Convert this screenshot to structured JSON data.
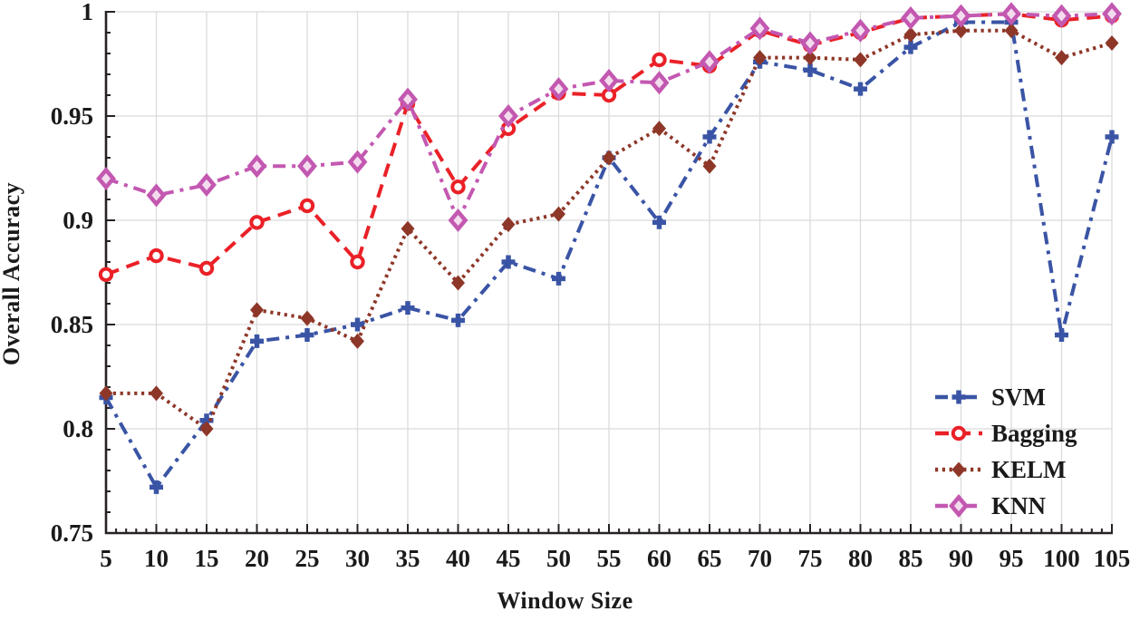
{
  "chart_data": {
    "type": "line",
    "title": "",
    "xlabel": "Window Size",
    "ylabel": "Overall Accuracy",
    "xlim": [
      5,
      105
    ],
    "ylim": [
      0.75,
      1.0
    ],
    "grid": true,
    "legend_position": "lower right",
    "xticks": [
      5,
      10,
      15,
      20,
      25,
      30,
      35,
      40,
      45,
      50,
      55,
      60,
      65,
      70,
      75,
      80,
      85,
      90,
      95,
      100,
      105
    ],
    "xtick_labels": [
      "5",
      "10",
      "15",
      "20",
      "25",
      "30",
      "35",
      "40",
      "45",
      "50",
      "55",
      "60",
      "65",
      "70",
      "75",
      "80",
      "85",
      "90",
      "95",
      "100",
      "105"
    ],
    "yticks": [
      0.75,
      0.8,
      0.85,
      0.9,
      0.95,
      1
    ],
    "ytick_labels": [
      "0.75",
      "0.8",
      "0.85",
      "0.9",
      "0.95",
      "1"
    ],
    "x_minor_step": 1,
    "y_minor_step": 0.01,
    "x": [
      5,
      10,
      15,
      20,
      25,
      30,
      35,
      40,
      45,
      50,
      55,
      60,
      65,
      70,
      75,
      80,
      85,
      90,
      95,
      100,
      105
    ],
    "series": [
      {
        "name": "SVM",
        "color": "#3A54A5",
        "line_style": "dash-dot",
        "marker": "plus",
        "values": [
          0.815,
          0.772,
          0.804,
          0.842,
          0.845,
          0.85,
          0.858,
          0.852,
          0.88,
          0.872,
          0.93,
          0.899,
          0.94,
          0.976,
          0.972,
          0.963,
          0.983,
          0.995,
          0.995,
          0.845,
          0.94
        ]
      },
      {
        "name": "Bagging",
        "color": "#EA2127",
        "line_style": "dashed",
        "marker": "open-circle",
        "values": [
          0.874,
          0.883,
          0.877,
          0.899,
          0.907,
          0.88,
          0.956,
          0.916,
          0.944,
          0.961,
          0.96,
          0.977,
          0.974,
          0.991,
          0.984,
          0.99,
          0.997,
          0.998,
          0.999,
          0.996,
          0.998
        ]
      },
      {
        "name": "KELM",
        "color": "#8E3728",
        "line_style": "dotted",
        "marker": "filled-diamond",
        "values": [
          0.817,
          0.817,
          0.8,
          0.857,
          0.853,
          0.842,
          0.896,
          0.87,
          0.898,
          0.903,
          0.93,
          0.944,
          0.926,
          0.978,
          0.978,
          0.977,
          0.989,
          0.991,
          0.991,
          0.978,
          0.985
        ]
      },
      {
        "name": "KNN",
        "color": "#C358B1",
        "line_style": "dash-dot",
        "marker": "open-diamond",
        "values": [
          0.92,
          0.912,
          0.917,
          0.926,
          0.926,
          0.928,
          0.958,
          0.9,
          0.95,
          0.963,
          0.967,
          0.966,
          0.976,
          0.992,
          0.985,
          0.991,
          0.997,
          0.998,
          0.999,
          0.998,
          0.999
        ]
      }
    ],
    "colors": {
      "grid": "#DBDBDB",
      "spine": "#262223",
      "tick_label": "#1a1a1a",
      "background": "#ffffff"
    }
  }
}
